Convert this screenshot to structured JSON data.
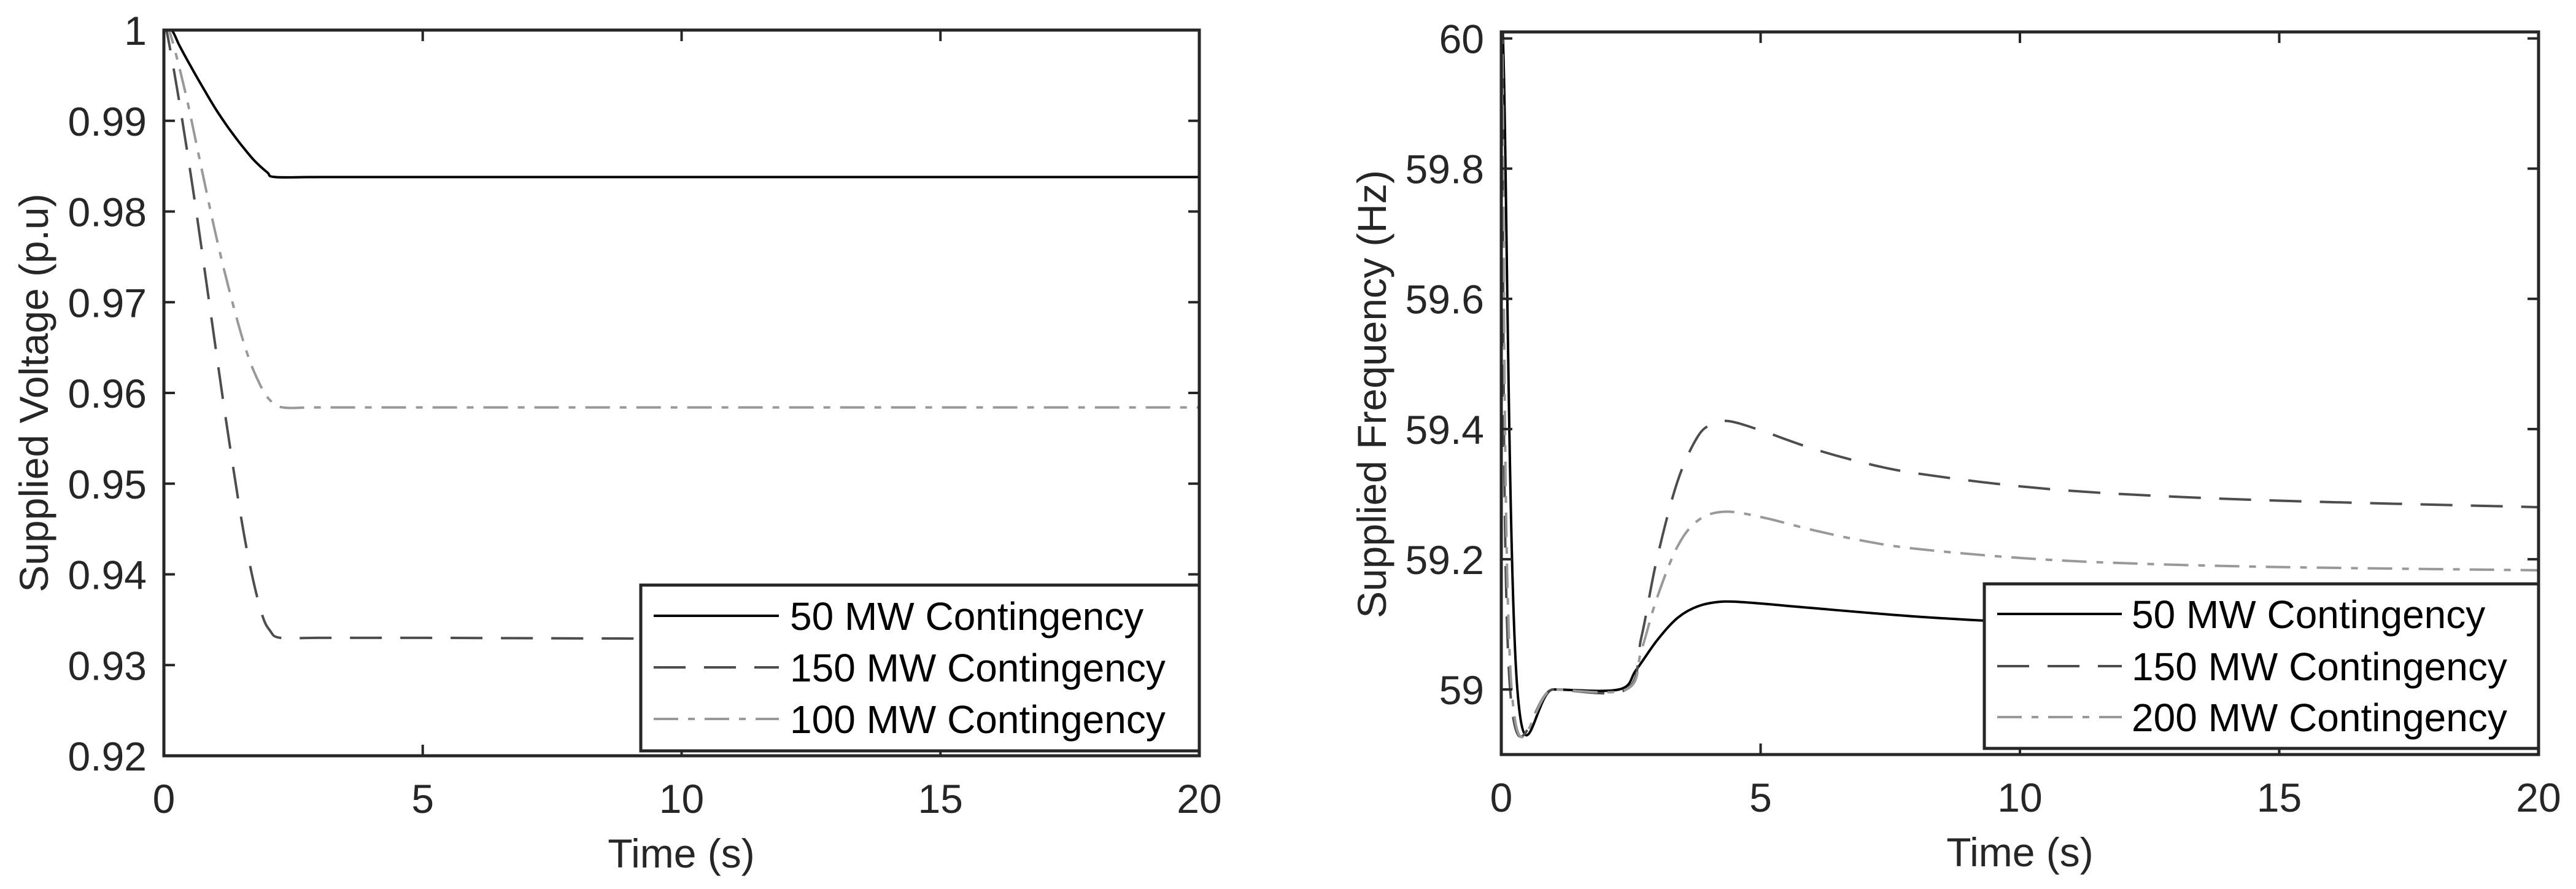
{
  "chart_data": [
    {
      "type": "line",
      "title": "",
      "xlabel": "Time (s)",
      "ylabel": "Supplied Voltage (p.u)",
      "xlim": [
        0,
        20
      ],
      "ylim": [
        0.92,
        1.0
      ],
      "xticks": [
        0,
        5,
        10,
        15,
        20
      ],
      "xtick_labels": [
        "0",
        "5",
        "10",
        "15",
        "20"
      ],
      "yticks": [
        0.92,
        0.93,
        0.94,
        0.95,
        0.96,
        0.97,
        0.98,
        0.99,
        1.0
      ],
      "ytick_labels": [
        "0.92",
        "0.93",
        "0.94",
        "0.95",
        "0.96",
        "0.97",
        "0.98",
        "0.99",
        "1"
      ],
      "grid": false,
      "legend_position": "lower right",
      "series": [
        {
          "name": "50 MW Contingency",
          "style": "solid",
          "color": "#000000",
          "x": [
            0,
            0.15,
            0.3,
            0.5,
            0.75,
            1.0,
            1.25,
            1.5,
            1.75,
            2.0,
            2.15,
            3,
            5,
            10,
            15,
            20
          ],
          "y": [
            1.0,
            1.0,
            0.9983,
            0.9962,
            0.9937,
            0.9913,
            0.9892,
            0.9873,
            0.9856,
            0.9843,
            0.9838,
            0.9838,
            0.9838,
            0.9838,
            0.9838,
            0.9838
          ]
        },
        {
          "name": "150 MW Contingency",
          "style": "dashed",
          "color": "#4d4d4d",
          "x": [
            0,
            0.05,
            0.3,
            0.6,
            0.9,
            1.2,
            1.5,
            1.7,
            1.9,
            2.05,
            2.25,
            3,
            5,
            10,
            15,
            20
          ],
          "y": [
            1.0,
            1.0,
            0.992,
            0.981,
            0.969,
            0.957,
            0.946,
            0.94,
            0.9355,
            0.9338,
            0.933,
            0.933,
            0.933,
            0.9329,
            0.9328,
            0.9328
          ]
        },
        {
          "name": "100 MW Contingency",
          "style": "dashdot",
          "color": "#999999",
          "x": [
            0,
            0.1,
            0.4,
            0.7,
            1.0,
            1.3,
            1.6,
            1.85,
            2.05,
            2.3,
            3,
            5,
            10,
            15,
            20
          ],
          "y": [
            1.0,
            1.0,
            0.9935,
            0.9855,
            0.9775,
            0.9705,
            0.9645,
            0.961,
            0.9592,
            0.9584,
            0.9584,
            0.9584,
            0.9584,
            0.9584,
            0.9584
          ]
        }
      ]
    },
    {
      "type": "line",
      "title": "",
      "xlabel": "Time (s)",
      "ylabel": "Supplied Frequency (Hz)",
      "xlim": [
        0,
        20
      ],
      "ylim": [
        58.9,
        60.01
      ],
      "xticks": [
        0,
        5,
        10,
        15,
        20
      ],
      "xtick_labels": [
        "0",
        "5",
        "10",
        "15",
        "20"
      ],
      "yticks": [
        59.0,
        59.2,
        59.4,
        59.6,
        59.8,
        60.0
      ],
      "ytick_labels": [
        "59",
        "59.2",
        "59.4",
        "59.6",
        "59.8",
        "60"
      ],
      "grid": false,
      "legend_position": "lower right",
      "series": [
        {
          "name": "50 MW Contingency",
          "style": "solid",
          "color": "#000000",
          "x": [
            0,
            0.05,
            0.31,
            1.0,
            2.27,
            2.6,
            3.0,
            3.4,
            3.8,
            4.3,
            5.0,
            6.0,
            8.0,
            10.0,
            12.0,
            15.0,
            20.0
          ],
          "y": [
            60.0,
            59.95,
            59.0,
            59.0,
            59.0,
            59.03,
            59.075,
            59.11,
            59.128,
            59.135,
            59.132,
            59.125,
            59.112,
            59.103,
            59.097,
            59.092,
            59.088
          ]
        },
        {
          "name": "150 MW Contingency",
          "style": "dashed",
          "color": "#4d4d4d",
          "x": [
            0,
            0.02,
            0.17,
            1.0,
            2.41,
            2.7,
            3.0,
            3.4,
            3.8,
            4.1,
            4.4,
            5.0,
            6.0,
            7.0,
            8.0,
            10.0,
            12.0,
            15.0,
            20.0
          ],
          "y": [
            60.0,
            59.98,
            59.0,
            59.0,
            59.0,
            59.08,
            59.2,
            59.32,
            59.39,
            59.408,
            59.412,
            59.398,
            59.37,
            59.348,
            59.332,
            59.312,
            59.3,
            59.29,
            59.28
          ]
        },
        {
          "name": "200 MW Contingency",
          "style": "dashdot",
          "color": "#999999",
          "x": [
            0,
            0.02,
            0.2,
            1.0,
            2.41,
            2.7,
            3.0,
            3.4,
            3.8,
            4.3,
            5.0,
            6.0,
            7.0,
            8.0,
            10.0,
            12.0,
            15.0,
            20.0
          ],
          "y": [
            60.0,
            59.99,
            59.0,
            59.0,
            59.0,
            59.06,
            59.14,
            59.22,
            59.26,
            59.273,
            59.265,
            59.245,
            59.228,
            59.216,
            59.202,
            59.194,
            59.188,
            59.183
          ]
        }
      ]
    }
  ],
  "panels": [
    {
      "ylabel": "Supplied Voltage (p.u)",
      "xlabel": "Time (s)",
      "legend": [
        "50 MW Contingency",
        "150 MW Contingency",
        "100 MW Contingency"
      ]
    },
    {
      "ylabel": "Supplied Frequency (Hz)",
      "xlabel": "Time (s)",
      "legend": [
        "50 MW Contingency",
        "150 MW Contingency",
        "200 MW Contingency"
      ]
    }
  ]
}
